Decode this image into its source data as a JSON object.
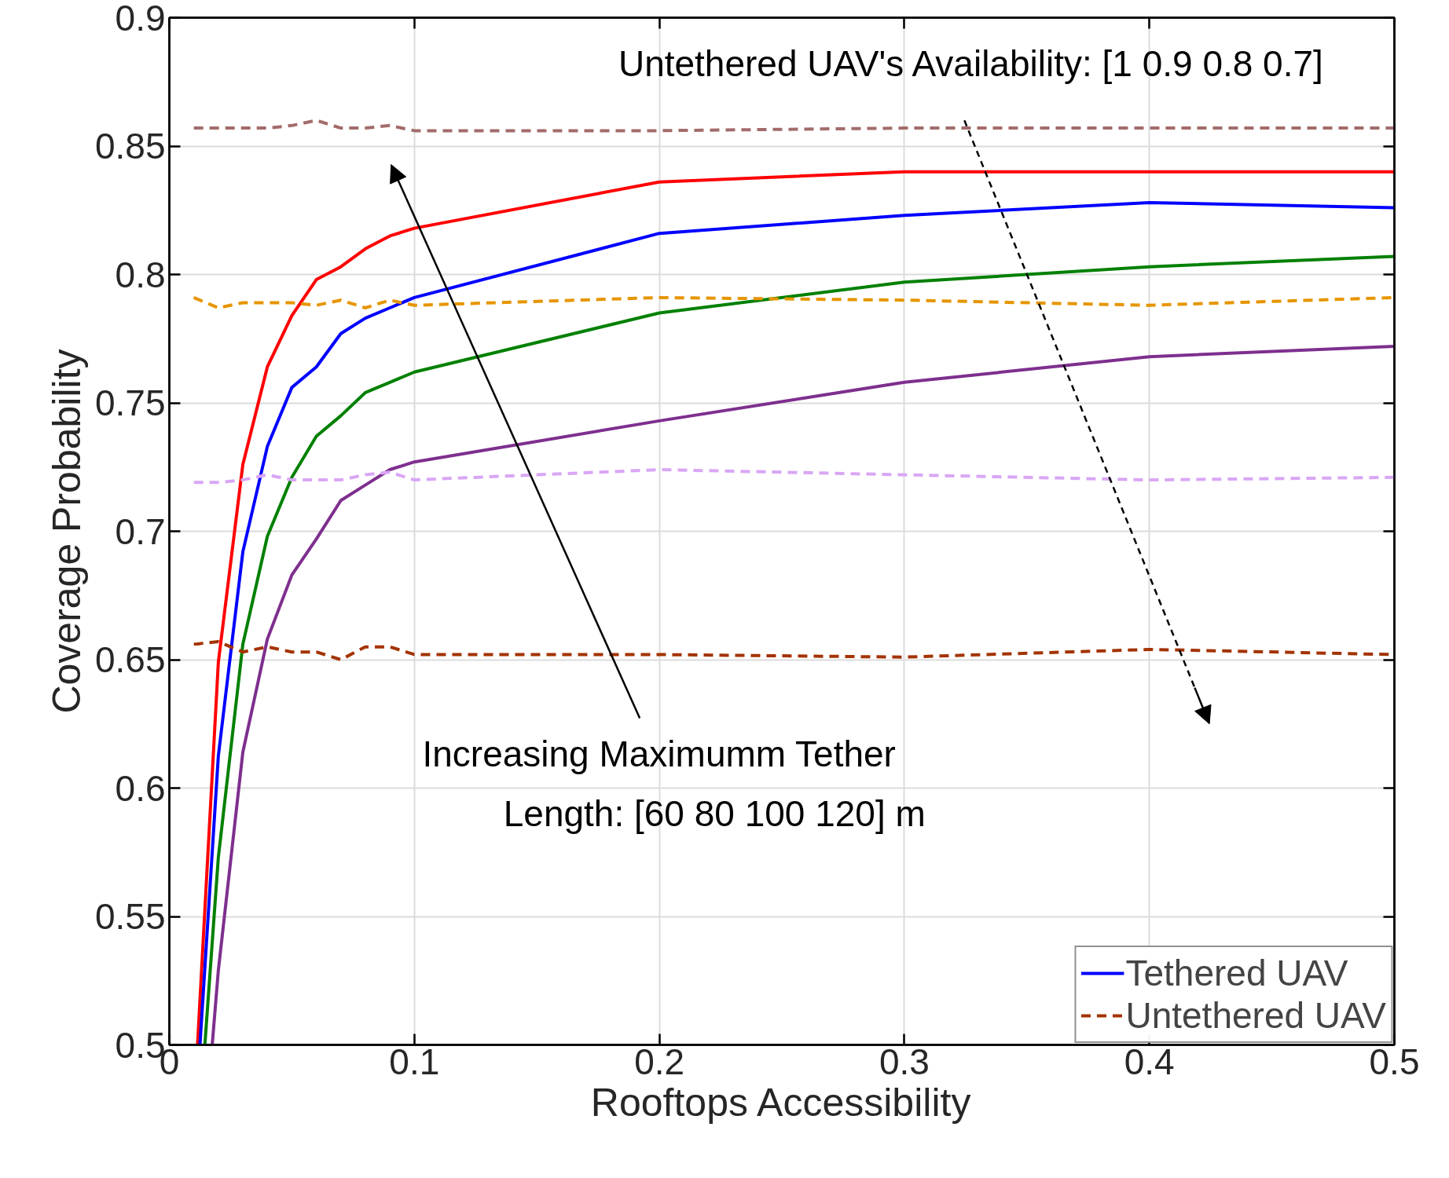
{
  "chart_data": {
    "type": "line",
    "xlabel": "Rooftops Accessibility",
    "ylabel": "Coverage Probability",
    "xlim": [
      0,
      0.5
    ],
    "ylim": [
      0.5,
      0.9
    ],
    "xticks": [
      0,
      0.1,
      0.2,
      0.3,
      0.4,
      0.5
    ],
    "yticks": [
      0.5,
      0.55,
      0.6,
      0.65,
      0.7,
      0.75,
      0.8,
      0.85,
      0.9
    ],
    "grid": true,
    "legend": "bottom right",
    "marker": "none",
    "annotations": [
      "Untethered UAV's Availability: [1 0.9 0.8 0.7]",
      "Increasing Maximumm Tether Length: [60 80 100 120] m"
    ],
    "series": [
      {
        "color": "#ff0000",
        "line_style": "solid",
        "x": [
          0.0115,
          0.02,
          0.03,
          0.04,
          0.05,
          0.06,
          0.07,
          0.08,
          0.09,
          0.1,
          0.2,
          0.3,
          0.4,
          0.5
        ],
        "values": [
          0.5,
          0.649,
          0.726,
          0.764,
          0.784,
          0.798,
          0.803,
          0.81,
          0.815,
          0.818,
          0.836,
          0.84,
          0.84,
          0.84
        ]
      },
      {
        "name": "Tethered UAV",
        "color": "#0000ff",
        "line_style": "solid",
        "x": [
          0.0125,
          0.02,
          0.03,
          0.04,
          0.05,
          0.06,
          0.07,
          0.08,
          0.09,
          0.1,
          0.2,
          0.3,
          0.4,
          0.5
        ],
        "values": [
          0.5,
          0.6125,
          0.692,
          0.733,
          0.756,
          0.764,
          0.777,
          0.783,
          0.787,
          0.791,
          0.816,
          0.823,
          0.828,
          0.826
        ]
      },
      {
        "color": "#008000",
        "line_style": "solid",
        "x": [
          0.0145,
          0.02,
          0.03,
          0.04,
          0.05,
          0.06,
          0.07,
          0.08,
          0.09,
          0.1,
          0.2,
          0.3,
          0.4,
          0.5
        ],
        "values": [
          0.5,
          0.573,
          0.656,
          0.698,
          0.721,
          0.737,
          0.745,
          0.754,
          0.758,
          0.762,
          0.785,
          0.797,
          0.803,
          0.807
        ]
      },
      {
        "color": "#7e2f8e",
        "line_style": "solid",
        "x": [
          0.0175,
          0.02,
          0.03,
          0.04,
          0.05,
          0.06,
          0.07,
          0.08,
          0.09,
          0.1,
          0.2,
          0.3,
          0.4,
          0.5
        ],
        "values": [
          0.5,
          0.529,
          0.614,
          0.658,
          0.683,
          0.697,
          0.712,
          0.718,
          0.724,
          0.727,
          0.743,
          0.758,
          0.768,
          0.772
        ]
      },
      {
        "color": "#a36b6b",
        "line_style": "dashed",
        "x": [
          0.01,
          0.02,
          0.03,
          0.04,
          0.05,
          0.06,
          0.07,
          0.08,
          0.09,
          0.1,
          0.2,
          0.3,
          0.4,
          0.5
        ],
        "values": [
          0.857,
          0.857,
          0.857,
          0.857,
          0.858,
          0.86,
          0.857,
          0.857,
          0.858,
          0.856,
          0.856,
          0.857,
          0.857,
          0.857
        ]
      },
      {
        "color": "#e69500",
        "line_style": "dashed",
        "x": [
          0.01,
          0.02,
          0.03,
          0.04,
          0.05,
          0.06,
          0.07,
          0.08,
          0.09,
          0.1,
          0.2,
          0.3,
          0.4,
          0.5
        ],
        "values": [
          0.791,
          0.787,
          0.789,
          0.789,
          0.789,
          0.788,
          0.79,
          0.787,
          0.79,
          0.788,
          0.791,
          0.79,
          0.788,
          0.791
        ]
      },
      {
        "color": "#d9a6f5",
        "line_style": "dashed",
        "x": [
          0.01,
          0.02,
          0.03,
          0.04,
          0.05,
          0.06,
          0.07,
          0.08,
          0.09,
          0.1,
          0.2,
          0.3,
          0.4,
          0.5
        ],
        "values": [
          0.719,
          0.719,
          0.72,
          0.722,
          0.72,
          0.72,
          0.72,
          0.722,
          0.723,
          0.72,
          0.724,
          0.722,
          0.72,
          0.721
        ]
      },
      {
        "name": "Untethered UAV",
        "color": "#a33300",
        "line_style": "dashed",
        "x": [
          0.01,
          0.02,
          0.03,
          0.04,
          0.05,
          0.06,
          0.07,
          0.08,
          0.09,
          0.1,
          0.2,
          0.3,
          0.4,
          0.5
        ],
        "values": [
          0.656,
          0.657,
          0.653,
          0.655,
          0.653,
          0.653,
          0.65,
          0.655,
          0.655,
          0.652,
          0.652,
          0.651,
          0.654,
          0.652
        ]
      }
    ]
  }
}
